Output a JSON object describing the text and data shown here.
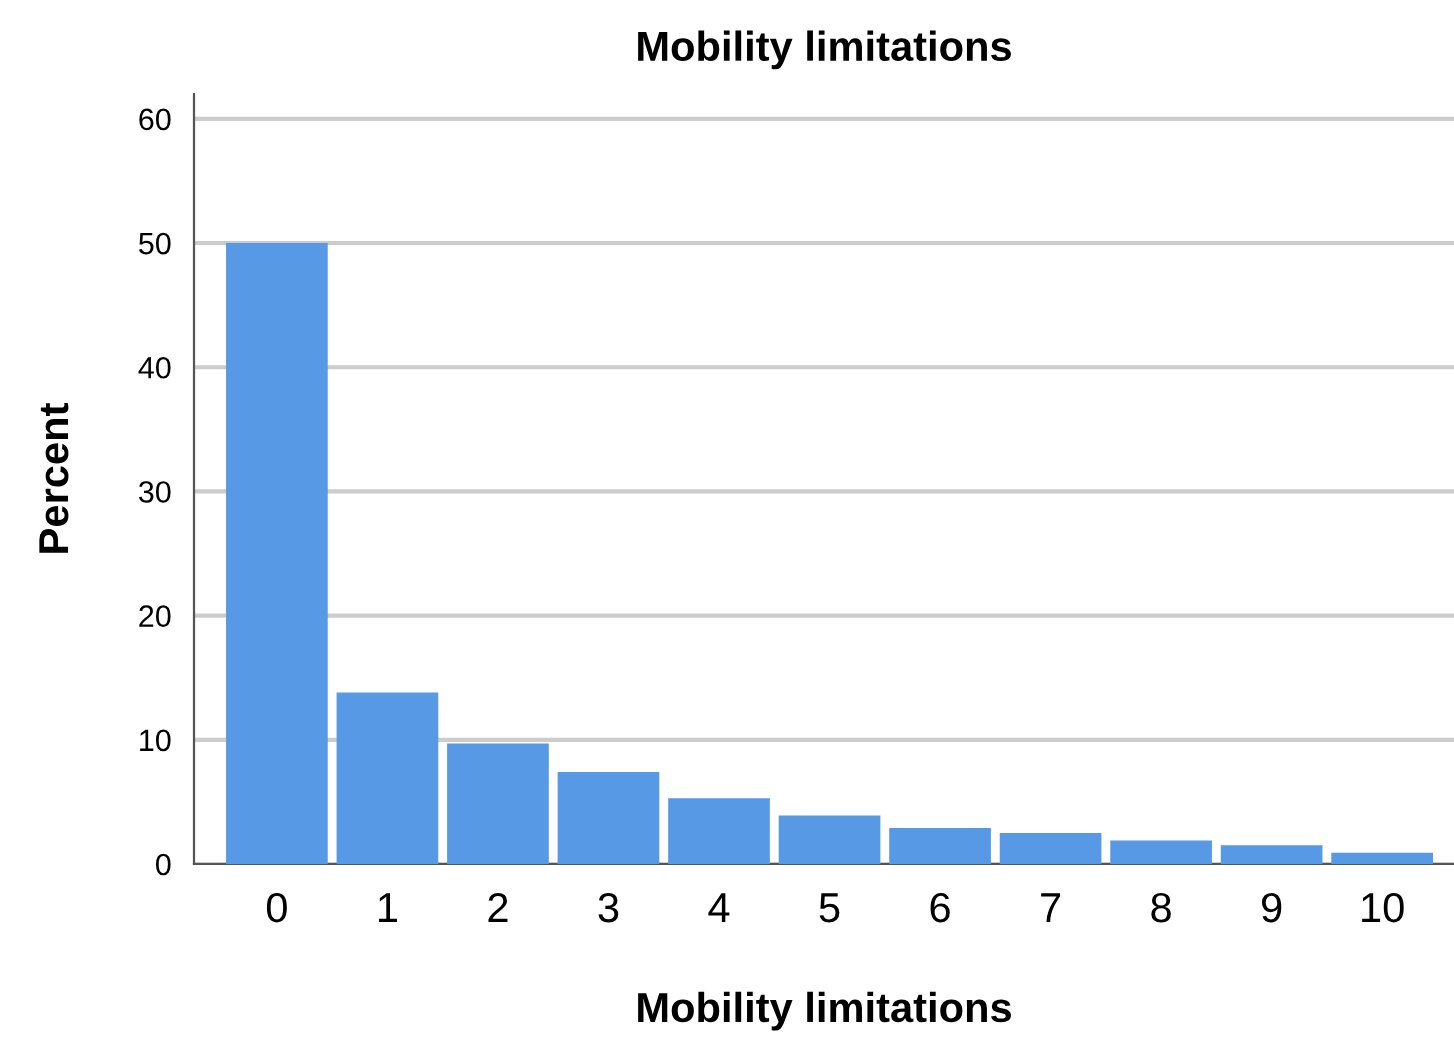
{
  "chart_data": {
    "type": "bar",
    "title": "Mobility limitations",
    "xlabel": "Mobility limitations",
    "ylabel": "Percent",
    "categories": [
      "0",
      "1",
      "2",
      "3",
      "4",
      "5",
      "6",
      "7",
      "8",
      "9",
      "10"
    ],
    "values": [
      50,
      13.8,
      9.7,
      7.4,
      5.3,
      3.9,
      2.9,
      2.5,
      1.9,
      1.5,
      0.9
    ],
    "color": "#5799e4",
    "ylim": [
      0,
      62
    ],
    "yticks": [
      0,
      10,
      20,
      30,
      40,
      50,
      60
    ],
    "grid": "y"
  }
}
